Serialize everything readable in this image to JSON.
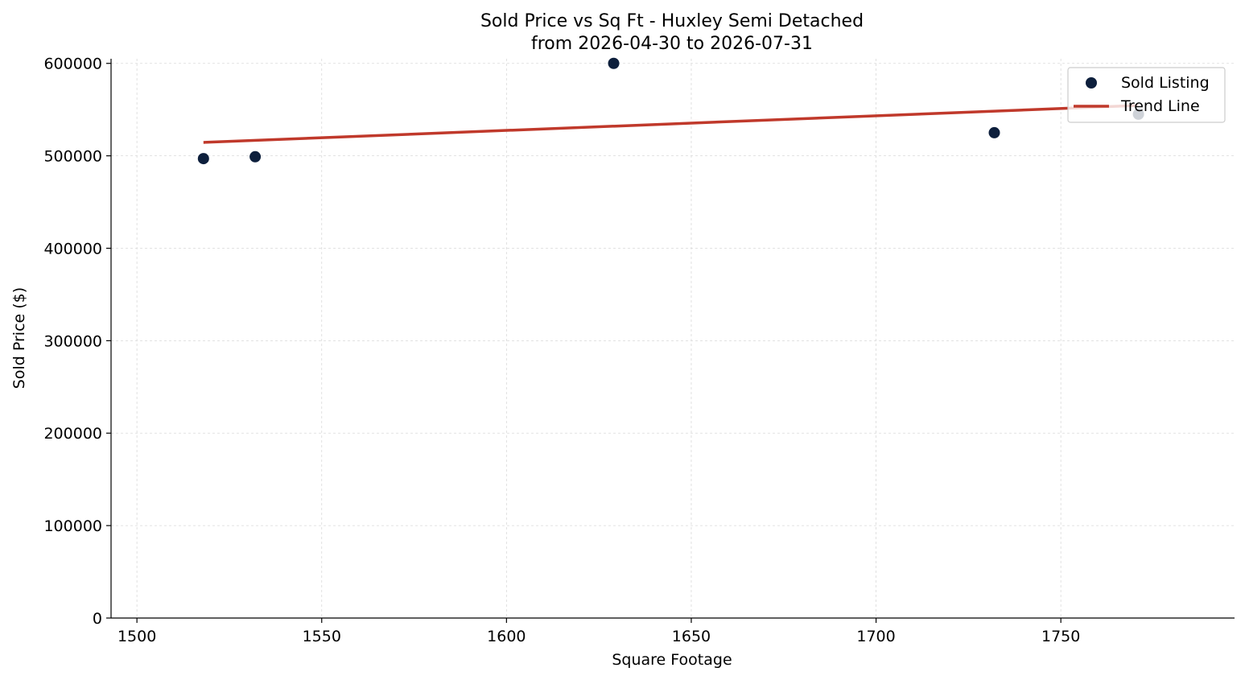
{
  "chart_data": {
    "type": "scatter",
    "title_line1": "Sold Price vs Sq Ft - Huxley Semi Detached",
    "title_line2": "from 2026-04-30 to 2026-07-31",
    "xlabel": "Square Footage",
    "ylabel": "Sold Price ($)",
    "xlim": [
      1493,
      1797
    ],
    "ylim": [
      0,
      605000
    ],
    "x_ticks": [
      1500,
      1550,
      1600,
      1650,
      1700,
      1750
    ],
    "y_ticks": [
      0,
      100000,
      200000,
      300000,
      400000,
      500000,
      600000
    ],
    "grid": true,
    "legend_position": "top-right",
    "series": [
      {
        "name": "Sold Listing",
        "kind": "scatter",
        "color": "#0d1f3c",
        "points": [
          {
            "x": 1518,
            "y": 497000
          },
          {
            "x": 1532,
            "y": 499000
          },
          {
            "x": 1629,
            "y": 600000
          },
          {
            "x": 1732,
            "y": 525000
          },
          {
            "x": 1771,
            "y": 545000
          }
        ]
      },
      {
        "name": "Trend Line",
        "kind": "line",
        "color": "#c0392b",
        "points": [
          {
            "x": 1518,
            "y": 514500
          },
          {
            "x": 1771,
            "y": 554500
          }
        ]
      }
    ]
  }
}
